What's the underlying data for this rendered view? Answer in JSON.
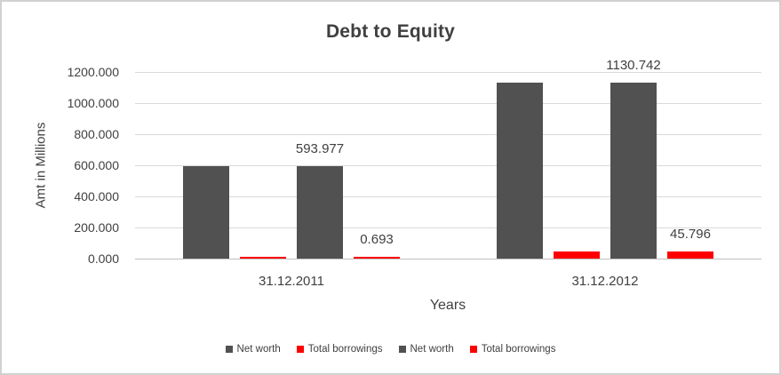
{
  "window": {
    "background": "#ffffff",
    "border_color": "#d1d1d1"
  },
  "chart_data": {
    "type": "bar",
    "title": "Debt to Equity",
    "xlabel": "Years",
    "ylabel": "Amt in Millions",
    "categories": [
      "31.12.2011",
      "31.12.2012"
    ],
    "series": [
      {
        "name": "Net worth",
        "color": "#515151",
        "values": [
          593.977,
          1130.742
        ],
        "data_labels": false,
        "labels": [
          "",
          ""
        ]
      },
      {
        "name": "Total borrowings",
        "color": "#ff0000",
        "values": [
          0.693,
          45.796
        ],
        "data_labels": false,
        "labels": [
          "",
          ""
        ]
      },
      {
        "name": "Net worth",
        "color": "#515151",
        "values": [
          593.977,
          1130.742
        ],
        "data_labels": true,
        "labels": [
          "593.977",
          "1130.742"
        ]
      },
      {
        "name": "Total borrowings",
        "color": "#ff0000",
        "values": [
          0.693,
          45.796
        ],
        "data_labels": true,
        "labels": [
          "0.693",
          "45.796"
        ]
      }
    ],
    "ylim": [
      0,
      1200
    ],
    "ytick_step": 200,
    "ytick_labels": [
      "0.000",
      "200.000",
      "400.000",
      "600.000",
      "800.000",
      "1000.000",
      "1200.000"
    ],
    "grid": true,
    "legend_position": "bottom",
    "legend": [
      {
        "label": "Net worth",
        "color": "#515151"
      },
      {
        "label": "Total borrowings",
        "color": "#ff0000"
      },
      {
        "label": "Net worth",
        "color": "#515151"
      },
      {
        "label": "Total borrowings",
        "color": "#ff0000"
      }
    ],
    "colors": {
      "grid": "#d9d9d9",
      "axis": "#bfbfbf",
      "text": "#404040"
    }
  }
}
